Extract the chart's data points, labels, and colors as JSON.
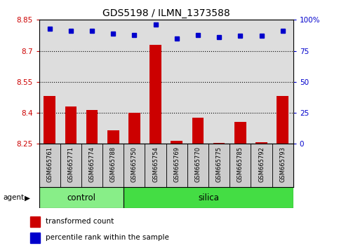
{
  "title": "GDS5198 / ILMN_1373588",
  "samples": [
    "GSM665761",
    "GSM665771",
    "GSM665774",
    "GSM665788",
    "GSM665750",
    "GSM665754",
    "GSM665769",
    "GSM665770",
    "GSM665775",
    "GSM665785",
    "GSM665792",
    "GSM665793"
  ],
  "bar_values": [
    8.48,
    8.43,
    8.415,
    8.315,
    8.4,
    8.73,
    8.265,
    8.375,
    8.255,
    8.355,
    8.257,
    8.48
  ],
  "percentile_values": [
    93,
    91,
    91,
    89,
    88,
    96,
    85,
    88,
    86,
    87,
    87,
    91
  ],
  "bar_color": "#cc0000",
  "percentile_color": "#0000cc",
  "ylim_left": [
    8.25,
    8.85
  ],
  "ylim_right": [
    0,
    100
  ],
  "yticks_left": [
    8.25,
    8.4,
    8.55,
    8.7,
    8.85
  ],
  "yticks_right": [
    0,
    25,
    50,
    75,
    100
  ],
  "ytick_labels_left": [
    "8.25",
    "8.4",
    "8.55",
    "8.7",
    "8.85"
  ],
  "ytick_labels_right": [
    "0",
    "25",
    "50",
    "75",
    "100%"
  ],
  "dotted_lines": [
    8.4,
    8.55,
    8.7
  ],
  "n_control": 4,
  "n_silica": 8,
  "control_color": "#88ee88",
  "silica_color": "#44dd44",
  "agent_label": "agent",
  "control_label": "control",
  "silica_label": "silica",
  "legend_bar_label": "transformed count",
  "legend_pct_label": "percentile rank within the sample",
  "bar_width": 0.55,
  "plot_bg_color": "#dddddd",
  "label_bg_color": "#cccccc"
}
